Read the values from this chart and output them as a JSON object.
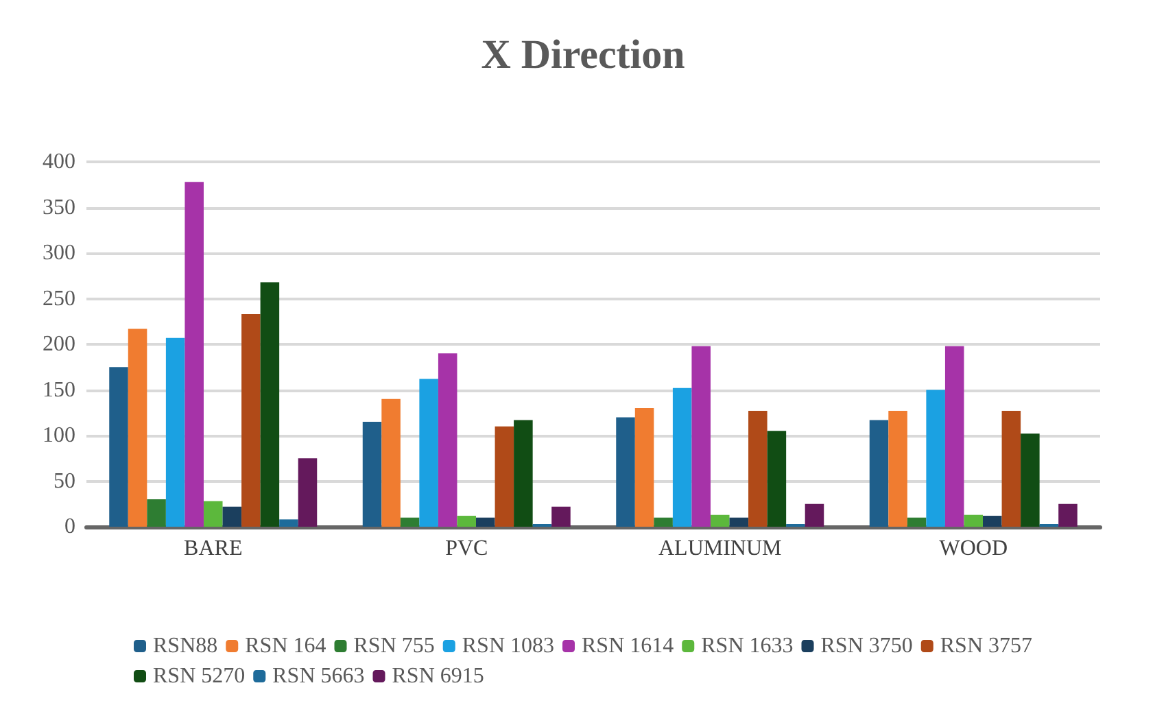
{
  "chart_data": {
    "type": "bar",
    "title": "X Direction",
    "categories": [
      "BARE",
      "PVC",
      "ALUMINUM",
      "WOOD"
    ],
    "series": [
      {
        "name": "RSN88",
        "color": "#1f5f8b",
        "values": [
          175,
          115,
          120,
          117
        ]
      },
      {
        "name": "RSN 164",
        "color": "#f07c30",
        "values": [
          217,
          140,
          130,
          127
        ]
      },
      {
        "name": "RSN 755",
        "color": "#2e7d32",
        "values": [
          30,
          10,
          10,
          10
        ]
      },
      {
        "name": "RSN 1083",
        "color": "#1ba1e2",
        "values": [
          207,
          162,
          152,
          150
        ]
      },
      {
        "name": "RSN 1614",
        "color": "#a633a8",
        "values": [
          378,
          190,
          198,
          198
        ]
      },
      {
        "name": "RSN 1633",
        "color": "#5cb83c",
        "values": [
          28,
          12,
          13,
          13
        ]
      },
      {
        "name": "RSN 3750",
        "color": "#1b3f5e",
        "values": [
          22,
          10,
          10,
          12
        ]
      },
      {
        "name": "RSN 3757",
        "color": "#b04a18",
        "values": [
          233,
          110,
          127,
          127
        ]
      },
      {
        "name": "RSN 5270",
        "color": "#114d14",
        "values": [
          268,
          117,
          105,
          102
        ]
      },
      {
        "name": "RSN 5663",
        "color": "#1e6b9a",
        "values": [
          8,
          3,
          3,
          3
        ]
      },
      {
        "name": "RSN 6915",
        "color": "#64195c",
        "values": [
          75,
          22,
          25,
          25
        ]
      }
    ],
    "ylim": [
      0,
      400
    ],
    "yticks": [
      0,
      50,
      100,
      150,
      200,
      250,
      300,
      350,
      400
    ],
    "grid": "y",
    "legend": "bottom"
  }
}
